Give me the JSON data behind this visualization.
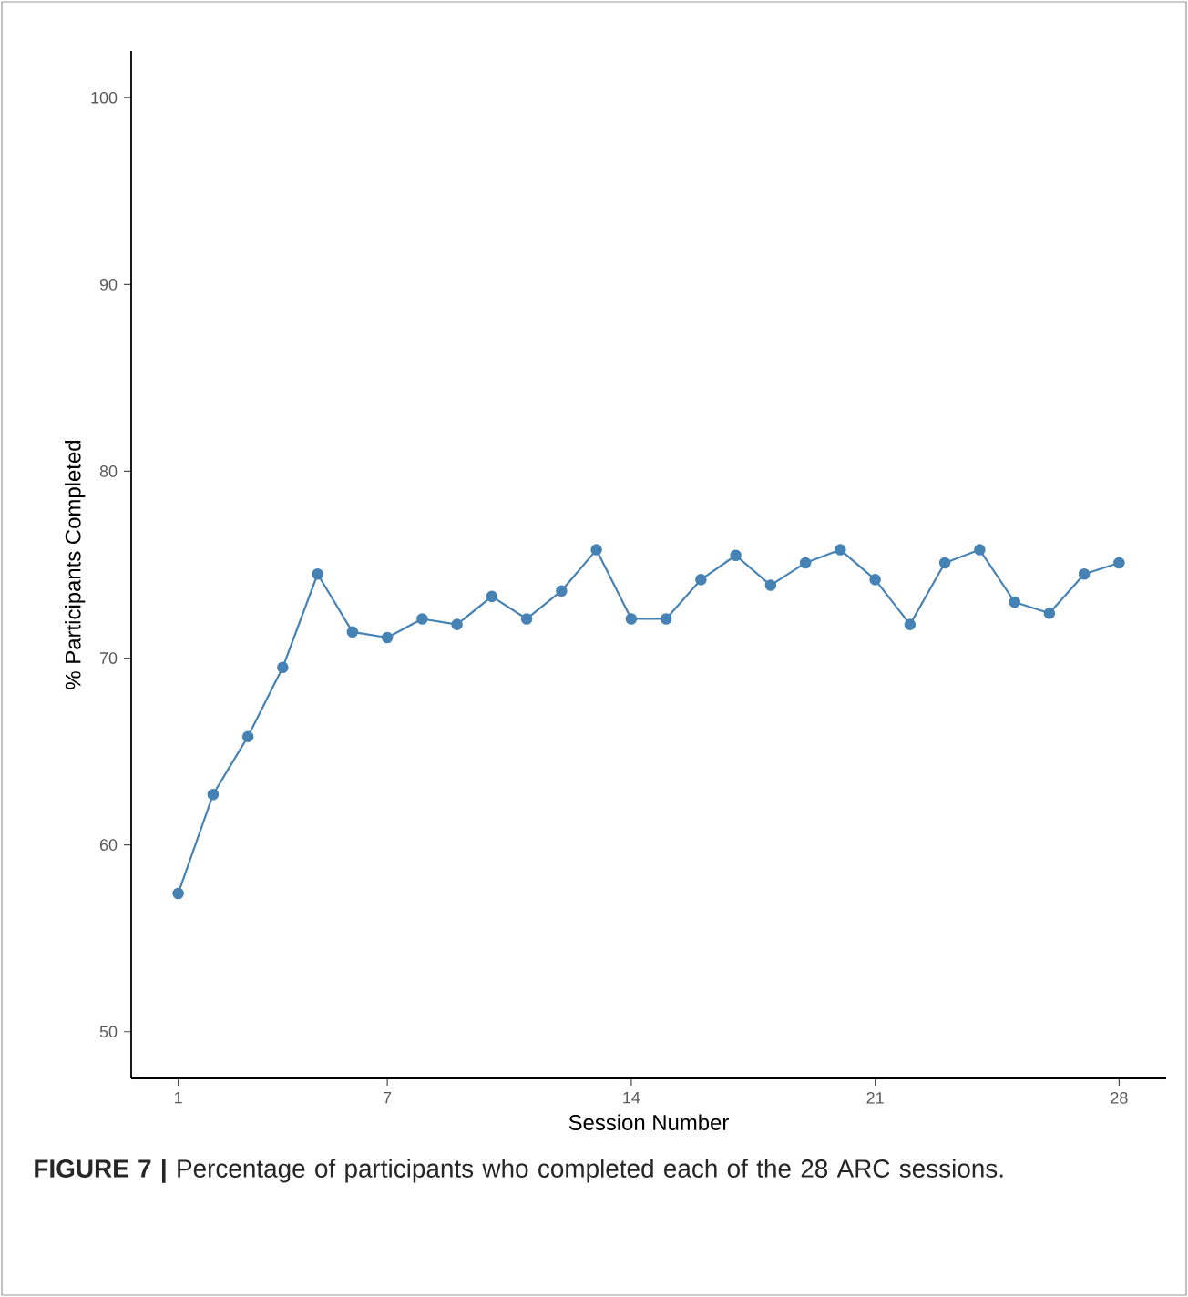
{
  "chart_data": {
    "type": "line",
    "xlabel": "Session Number",
    "ylabel": "% Participants Completed",
    "x": [
      1,
      2,
      3,
      4,
      5,
      6,
      7,
      8,
      9,
      10,
      11,
      12,
      13,
      14,
      15,
      16,
      17,
      18,
      19,
      20,
      21,
      22,
      23,
      24,
      25,
      26,
      27,
      28
    ],
    "series": [
      {
        "color": "#4682b4",
        "values": [
          57.4,
          62.7,
          65.8,
          69.5,
          74.5,
          71.4,
          71.1,
          72.1,
          71.8,
          73.3,
          72.1,
          73.6,
          75.8,
          72.1,
          72.1,
          74.2,
          75.5,
          73.9,
          75.1,
          75.8,
          74.2,
          71.8,
          75.1,
          75.8,
          73.0,
          72.4,
          74.5,
          75.1
        ]
      }
    ],
    "marker": "circle",
    "line_style": "solid",
    "xlim": [
      -0.35,
      29.35
    ],
    "ylim": [
      47.5,
      102.5
    ],
    "xticks": [
      1,
      7,
      14,
      21,
      28
    ],
    "yticks": [
      50,
      60,
      70,
      80,
      90,
      100
    ],
    "annotations": [
      "**FIGURE 7 |** Percentage of participants who completed each of the 28 ARC sessions."
    ]
  }
}
